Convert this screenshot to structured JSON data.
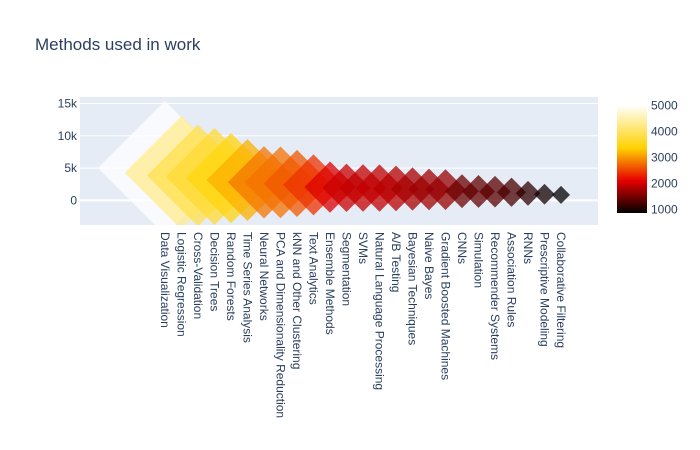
{
  "chart_data": {
    "type": "scatter",
    "marker": "diamond",
    "title": "Methods used in work",
    "xlabel": "",
    "ylabel": "",
    "categories": [
      "Data Visualization",
      "Logistic Regression",
      "Cross-Validation",
      "Decision Trees",
      "Random Forests",
      "Time Series Analysis",
      "Neural Networks",
      "PCA and Dimensionality Reduction",
      "kNN and Other Clustering",
      "Text Analytics",
      "Ensemble Methods",
      "Segmentation",
      "SVMs",
      "Natural Language Processing",
      "A/B Testing",
      "Bayesian Techniques",
      "Naive Bayes",
      "Gradient Boosted Machines",
      "CNNs",
      "Simulation",
      "Recommender Systems",
      "Association Rules",
      "RNNs",
      "Prescriptive Modeling",
      "Collaborative Filtering"
    ],
    "values": [
      5022,
      4291,
      3868,
      3695,
      3454,
      3153,
      2811,
      2789,
      2624,
      2405,
      2056,
      1950,
      1921,
      1913,
      1853,
      1765,
      1705,
      1675,
      1428,
      1391,
      1352,
      1262,
      1103,
      960,
      860
    ],
    "ylim": [
      -3800,
      16000
    ],
    "yticks": [
      0,
      5000,
      10000,
      15000
    ],
    "ytick_labels": [
      "0",
      "5k",
      "10k",
      "15k"
    ],
    "grid": true,
    "colorbar": {
      "colorscale": "hot",
      "range": [
        860,
        5022
      ],
      "ticks": [
        1000,
        2000,
        3000,
        4000,
        5000
      ],
      "tick_labels": [
        "1000",
        "2000",
        "3000",
        "4000",
        "5000"
      ]
    }
  },
  "colors": {
    "plot_bg": "#e5ecf6",
    "grid": "#ffffff",
    "text": "#2a3f5f"
  }
}
